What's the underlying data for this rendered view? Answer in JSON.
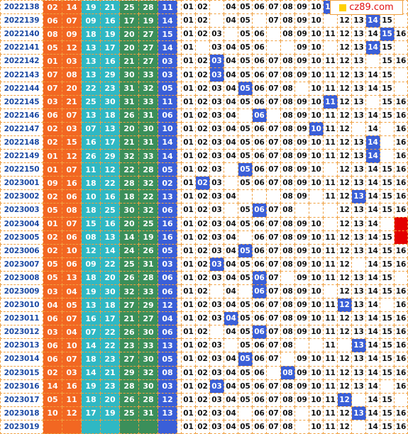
{
  "site": {
    "logo_text": "cz89.com"
  },
  "colors": {
    "periodBg": "#ffffff",
    "red": [
      "#f26722",
      "#f26722",
      "#f26722"
    ],
    "redCols": [
      "#f26722",
      "#f26722",
      "#2fb8c4",
      "#2fb8c4",
      "#3b8f5a",
      "#3b8f5a"
    ],
    "blue": "#3a5fd8",
    "highlight": "#e30000"
  },
  "rows": [
    {
      "period": "2022138",
      "red": [
        "02",
        "14",
        "19",
        "21",
        "25",
        "28"
      ],
      "blue": "11",
      "hits": [
        1,
        2,
        4,
        5,
        6,
        7,
        8,
        9,
        10,
        11
      ]
    },
    {
      "period": "2022139",
      "red": [
        "06",
        "07",
        "09",
        "16",
        "17",
        "19"
      ],
      "blue": "14",
      "hits": [
        1,
        2,
        4,
        5,
        7,
        8,
        9,
        10,
        12,
        13,
        14,
        15
      ]
    },
    {
      "period": "2022140",
      "red": [
        "08",
        "09",
        "18",
        "19",
        "20",
        "27"
      ],
      "blue": "15",
      "hits": [
        1,
        2,
        3,
        5,
        6,
        8,
        9,
        10,
        11,
        12,
        13,
        14,
        15,
        16
      ]
    },
    {
      "period": "2022141",
      "red": [
        "05",
        "12",
        "13",
        "17",
        "20",
        "27"
      ],
      "blue": "14",
      "hits": [
        1,
        3,
        4,
        5,
        6,
        9,
        10,
        12,
        13,
        14,
        15
      ]
    },
    {
      "period": "2022142",
      "red": [
        "01",
        "03",
        "13",
        "16",
        "21",
        "27"
      ],
      "blue": "03",
      "hits": [
        1,
        2,
        3,
        4,
        5,
        6,
        7,
        8,
        9,
        10,
        11,
        12,
        13,
        15,
        16
      ]
    },
    {
      "period": "2022143",
      "red": [
        "07",
        "08",
        "13",
        "29",
        "30",
        "33"
      ],
      "blue": "03",
      "hits": [
        1,
        2,
        3,
        4,
        5,
        6,
        7,
        8,
        9,
        10,
        11,
        12,
        13,
        14,
        15
      ]
    },
    {
      "period": "2022144",
      "red": [
        "07",
        "20",
        "22",
        "23",
        "31",
        "32"
      ],
      "blue": "05",
      "hits": [
        1,
        2,
        3,
        4,
        5,
        6,
        7,
        8,
        10,
        11,
        12,
        13,
        14,
        15
      ]
    },
    {
      "period": "2022145",
      "red": [
        "03",
        "21",
        "25",
        "30",
        "31",
        "33"
      ],
      "blue": "11",
      "hits": [
        1,
        2,
        3,
        4,
        5,
        6,
        7,
        8,
        9,
        10,
        11,
        12,
        13,
        15,
        16
      ]
    },
    {
      "period": "2022146",
      "red": [
        "06",
        "07",
        "13",
        "18",
        "26",
        "31"
      ],
      "blue": "06",
      "hits": [
        1,
        2,
        3,
        4,
        6,
        8,
        9,
        10,
        11,
        12,
        13,
        14,
        15,
        16
      ]
    },
    {
      "period": "2022147",
      "red": [
        "02",
        "03",
        "07",
        "13",
        "20",
        "30"
      ],
      "blue": "10",
      "hits": [
        1,
        2,
        3,
        4,
        5,
        6,
        7,
        8,
        9,
        10,
        11,
        12,
        14,
        16
      ]
    },
    {
      "period": "2022148",
      "red": [
        "02",
        "15",
        "16",
        "17",
        "21",
        "31"
      ],
      "blue": "14",
      "hits": [
        1,
        2,
        3,
        4,
        5,
        6,
        7,
        8,
        9,
        10,
        11,
        12,
        13,
        14,
        16
      ]
    },
    {
      "period": "2022149",
      "red": [
        "01",
        "12",
        "26",
        "29",
        "32",
        "33"
      ],
      "blue": "14",
      "hits": [
        1,
        2,
        3,
        4,
        5,
        6,
        7,
        8,
        9,
        10,
        11,
        12,
        13,
        14,
        16
      ]
    },
    {
      "period": "2022150",
      "red": [
        "01",
        "07",
        "11",
        "12",
        "22",
        "28"
      ],
      "blue": "05",
      "hits": [
        1,
        2,
        3,
        5,
        6,
        7,
        8,
        9,
        10,
        12,
        13,
        14,
        15,
        16
      ]
    },
    {
      "period": "2023001",
      "red": [
        "09",
        "16",
        "18",
        "22",
        "28",
        "32"
      ],
      "blue": "02",
      "hits": [
        1,
        2,
        3,
        5,
        6,
        7,
        8,
        9,
        10,
        11,
        12,
        13,
        14,
        15,
        16
      ]
    },
    {
      "period": "2023002",
      "red": [
        "02",
        "06",
        "10",
        "16",
        "18",
        "22"
      ],
      "blue": "13",
      "hits": [
        1,
        2,
        3,
        4,
        8,
        9,
        11,
        12,
        13,
        14,
        15,
        16
      ]
    },
    {
      "period": "2023003",
      "red": [
        "05",
        "08",
        "18",
        "25",
        "30",
        "32"
      ],
      "blue": "06",
      "hits": [
        1,
        2,
        3,
        5,
        6,
        7,
        8,
        12,
        13,
        14,
        15,
        16
      ]
    },
    {
      "period": "2023004",
      "red": [
        "01",
        "07",
        "15",
        "16",
        "20",
        "25"
      ],
      "blue": "16",
      "hits": [
        1,
        2,
        3,
        4,
        5,
        6,
        7,
        8,
        9,
        10,
        12,
        13,
        14,
        16
      ]
    },
    {
      "period": "2023005",
      "red": [
        "02",
        "06",
        "08",
        "13",
        "14",
        "19"
      ],
      "blue": "16",
      "hits": [
        1,
        2,
        3,
        4,
        6,
        7,
        8,
        9,
        10,
        11,
        12,
        13,
        14,
        15,
        16
      ]
    },
    {
      "period": "2023006",
      "red": [
        "02",
        "10",
        "12",
        "14",
        "24",
        "26"
      ],
      "blue": "05",
      "hits": [
        1,
        2,
        3,
        4,
        5,
        6,
        7,
        8,
        9,
        10,
        11,
        12,
        13,
        14,
        15,
        16
      ]
    },
    {
      "period": "2023007",
      "red": [
        "05",
        "06",
        "09",
        "22",
        "25",
        "31"
      ],
      "blue": "03",
      "hits": [
        1,
        2,
        3,
        4,
        5,
        6,
        7,
        8,
        9,
        10,
        11,
        12,
        14,
        15,
        16
      ]
    },
    {
      "period": "2023008",
      "red": [
        "05",
        "13",
        "18",
        "20",
        "26",
        "28"
      ],
      "blue": "06",
      "hits": [
        1,
        2,
        3,
        4,
        5,
        6,
        7,
        9,
        10,
        11,
        12,
        13,
        14,
        15
      ]
    },
    {
      "period": "2023009",
      "red": [
        "03",
        "04",
        "19",
        "30",
        "32",
        "33"
      ],
      "blue": "06",
      "hits": [
        1,
        2,
        4,
        6,
        7,
        8,
        9,
        10,
        12,
        13,
        14,
        15,
        16
      ]
    },
    {
      "period": "2023010",
      "red": [
        "04",
        "05",
        "13",
        "18",
        "27",
        "29"
      ],
      "blue": "12",
      "hits": [
        1,
        2,
        3,
        4,
        5,
        6,
        7,
        8,
        9,
        10,
        11,
        12,
        13,
        14,
        16
      ]
    },
    {
      "period": "2023011",
      "red": [
        "06",
        "07",
        "16",
        "17",
        "21",
        "27"
      ],
      "blue": "04",
      "hits": [
        1,
        2,
        3,
        4,
        5,
        6,
        7,
        8,
        9,
        10,
        11,
        12,
        13,
        14,
        15,
        16
      ]
    },
    {
      "period": "2023012",
      "red": [
        "03",
        "04",
        "07",
        "22",
        "26",
        "30"
      ],
      "blue": "06",
      "hits": [
        1,
        2,
        4,
        5,
        6,
        7,
        8,
        9,
        10,
        11,
        12,
        13,
        14,
        15,
        16
      ]
    },
    {
      "period": "2023013",
      "red": [
        "06",
        "10",
        "14",
        "22",
        "23",
        "33"
      ],
      "blue": "13",
      "hits": [
        1,
        2,
        3,
        5,
        6,
        7,
        8,
        11,
        13,
        14,
        15,
        16
      ]
    },
    {
      "period": "2023014",
      "red": [
        "06",
        "07",
        "18",
        "23",
        "27",
        "30"
      ],
      "blue": "05",
      "hits": [
        1,
        2,
        3,
        4,
        5,
        6,
        7,
        9,
        10,
        11,
        12,
        13,
        14,
        15,
        16
      ]
    },
    {
      "period": "2023015",
      "red": [
        "02",
        "03",
        "14",
        "21",
        "29",
        "32"
      ],
      "blue": "08",
      "hits": [
        1,
        2,
        3,
        4,
        5,
        6,
        8,
        9,
        10,
        11,
        12,
        13,
        14,
        15,
        16
      ]
    },
    {
      "period": "2023016",
      "red": [
        "14",
        "16",
        "19",
        "23",
        "28",
        "30"
      ],
      "blue": "03",
      "hits": [
        1,
        2,
        3,
        4,
        5,
        6,
        7,
        8,
        9,
        10,
        11,
        12,
        13,
        14,
        16
      ]
    },
    {
      "period": "2023017",
      "red": [
        "05",
        "11",
        "18",
        "20",
        "26",
        "28"
      ],
      "blue": "12",
      "hits": [
        1,
        2,
        3,
        4,
        5,
        6,
        7,
        8,
        9,
        10,
        11,
        12,
        14,
        15
      ]
    },
    {
      "period": "2023018",
      "red": [
        "10",
        "12",
        "17",
        "19",
        "25",
        "31"
      ],
      "blue": "13",
      "hits": [
        1,
        2,
        3,
        4,
        6,
        7,
        8,
        10,
        11,
        12,
        13,
        14,
        15,
        16
      ]
    },
    {
      "period": "2023019",
      "red": [
        "",
        "",
        "",
        "",
        "",
        ""
      ],
      "blue": "",
      "hits": [
        1,
        2,
        3,
        4,
        5,
        6,
        7,
        8,
        10,
        11,
        12,
        14,
        15,
        16
      ]
    }
  ],
  "blueHighlights": [
    {
      "row": 0,
      "n": 11
    },
    {
      "row": 1,
      "n": 14
    },
    {
      "row": 2,
      "n": 15
    },
    {
      "row": 3,
      "n": 14
    },
    {
      "row": 4,
      "n": 3
    },
    {
      "row": 5,
      "n": 3
    },
    {
      "row": 6,
      "n": 5
    },
    {
      "row": 7,
      "n": 11
    },
    {
      "row": 8,
      "n": 6
    },
    {
      "row": 9,
      "n": 10
    },
    {
      "row": 10,
      "n": 14
    },
    {
      "row": 11,
      "n": 14
    },
    {
      "row": 12,
      "n": 5
    },
    {
      "row": 13,
      "n": 2
    },
    {
      "row": 14,
      "n": 13
    },
    {
      "row": 15,
      "n": 6
    },
    {
      "row": 16,
      "n": 16
    },
    {
      "row": 17,
      "n": 16
    },
    {
      "row": 18,
      "n": 5
    },
    {
      "row": 19,
      "n": 3
    },
    {
      "row": 20,
      "n": 6
    },
    {
      "row": 21,
      "n": 6
    },
    {
      "row": 22,
      "n": 12
    },
    {
      "row": 23,
      "n": 4
    },
    {
      "row": 24,
      "n": 6
    },
    {
      "row": 25,
      "n": 13
    },
    {
      "row": 26,
      "n": 5
    },
    {
      "row": 27,
      "n": 8
    },
    {
      "row": 28,
      "n": 3
    },
    {
      "row": 29,
      "n": 12
    },
    {
      "row": 30,
      "n": 13
    }
  ],
  "redHighlightRows": [
    16,
    17
  ]
}
